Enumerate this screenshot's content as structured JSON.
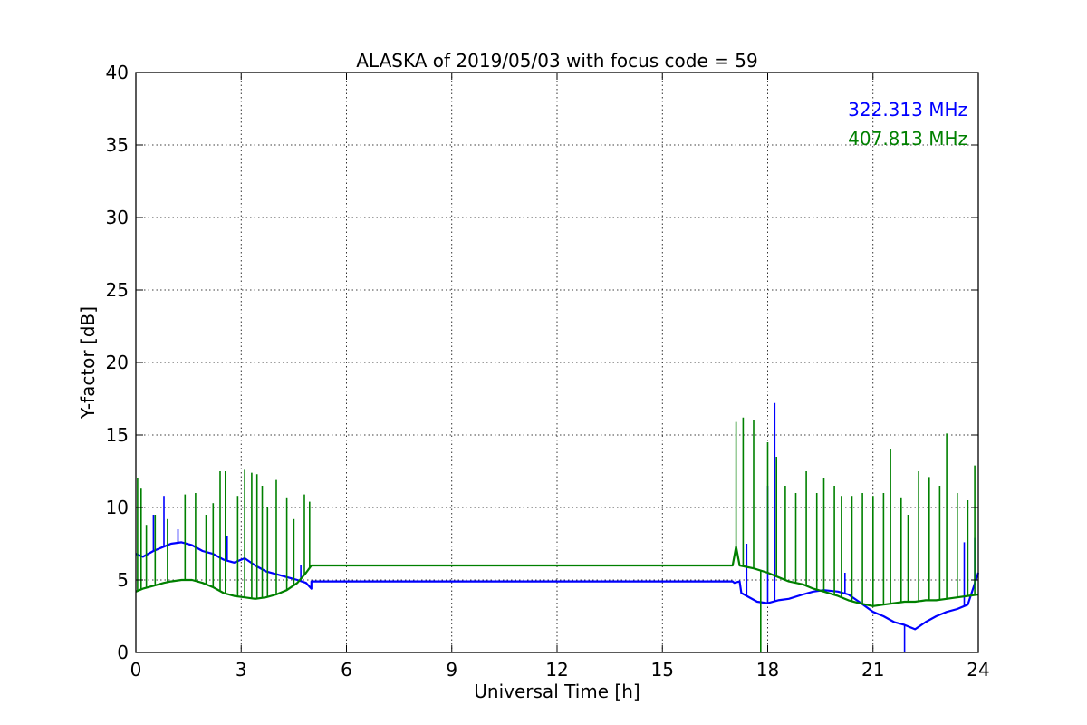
{
  "chart_data": {
    "type": "line",
    "title": "ALASKA of 2019/05/03 with focus code = 59",
    "xlabel": "Universal Time [h]",
    "ylabel": "Y-factor [dB]",
    "xlim": [
      0,
      24
    ],
    "ylim": [
      0,
      40
    ],
    "xticks": [
      0,
      3,
      6,
      9,
      12,
      15,
      18,
      21,
      24
    ],
    "xtick_labels": [
      "0",
      "3",
      "6",
      "9",
      "12",
      "15",
      "18",
      "21",
      "24"
    ],
    "yticks": [
      0,
      5,
      10,
      15,
      20,
      25,
      30,
      35,
      40
    ],
    "ytick_labels": [
      "0",
      "5",
      "10",
      "15",
      "20",
      "25",
      "30",
      "35",
      "40"
    ],
    "grid": true,
    "legend_position": "top-right",
    "series": [
      {
        "name": "322.313 MHz",
        "color": "#0000ff",
        "x": [
          0.0,
          0.2,
          0.5,
          0.8,
          1.0,
          1.3,
          1.6,
          1.9,
          2.2,
          2.5,
          2.8,
          3.1,
          3.4,
          3.7,
          4.0,
          4.3,
          4.6,
          4.85,
          5.0,
          5.0,
          17.0,
          17.05,
          17.2,
          17.25,
          17.7,
          18.0,
          18.3,
          18.6,
          19.0,
          19.3,
          19.6,
          20.0,
          20.3,
          20.6,
          21.0,
          21.3,
          21.6,
          21.9,
          22.2,
          22.5,
          22.8,
          23.1,
          23.4,
          23.7,
          24.0
        ],
        "y": [
          6.8,
          6.6,
          7.0,
          7.3,
          7.5,
          7.6,
          7.4,
          7.0,
          6.8,
          6.4,
          6.2,
          6.5,
          6.0,
          5.6,
          5.4,
          5.2,
          5.0,
          4.8,
          4.4,
          4.9,
          4.9,
          4.8,
          4.9,
          4.1,
          3.5,
          3.4,
          3.6,
          3.7,
          4.0,
          4.2,
          4.3,
          4.2,
          4.0,
          3.5,
          2.8,
          2.5,
          2.1,
          1.9,
          1.6,
          2.1,
          2.5,
          2.8,
          3.0,
          3.3,
          5.5
        ],
        "spikes": [
          [
            0.5,
            9.5
          ],
          [
            0.8,
            10.8
          ],
          [
            1.2,
            8.5
          ],
          [
            2.6,
            8.0
          ],
          [
            4.7,
            6.0
          ],
          [
            17.4,
            7.5
          ],
          [
            18.2,
            17.2
          ],
          [
            18.0,
            11.5
          ],
          [
            20.2,
            5.5
          ],
          [
            21.9,
            0.0
          ],
          [
            23.6,
            7.6
          ],
          [
            23.9,
            7.9
          ]
        ]
      },
      {
        "name": "407.813 MHz",
        "color": "#008000",
        "x": [
          0.0,
          0.2,
          0.5,
          0.8,
          1.0,
          1.3,
          1.6,
          1.9,
          2.2,
          2.5,
          2.8,
          3.1,
          3.4,
          3.7,
          4.0,
          4.3,
          4.6,
          4.85,
          5.0,
          17.0,
          17.1,
          17.2,
          17.6,
          18.0,
          18.3,
          18.6,
          19.0,
          19.3,
          19.6,
          20.0,
          20.3,
          20.6,
          21.0,
          21.3,
          21.6,
          21.9,
          22.2,
          22.5,
          22.8,
          23.1,
          23.4,
          23.7,
          24.0
        ],
        "y": [
          4.2,
          4.4,
          4.6,
          4.8,
          4.9,
          5.0,
          5.0,
          4.8,
          4.5,
          4.1,
          3.9,
          3.8,
          3.7,
          3.8,
          4.0,
          4.3,
          4.8,
          5.5,
          6.0,
          6.0,
          7.3,
          6.0,
          5.8,
          5.5,
          5.2,
          4.9,
          4.7,
          4.4,
          4.2,
          3.9,
          3.6,
          3.4,
          3.2,
          3.3,
          3.4,
          3.5,
          3.5,
          3.6,
          3.6,
          3.7,
          3.8,
          3.9,
          4.0
        ],
        "spikes": [
          [
            0.05,
            12.0
          ],
          [
            0.15,
            11.3
          ],
          [
            0.3,
            8.8
          ],
          [
            0.55,
            9.5
          ],
          [
            0.9,
            9.2
          ],
          [
            1.4,
            10.9
          ],
          [
            1.7,
            11.0
          ],
          [
            2.0,
            9.5
          ],
          [
            2.2,
            10.3
          ],
          [
            2.4,
            12.5
          ],
          [
            2.55,
            12.5
          ],
          [
            2.9,
            10.8
          ],
          [
            3.1,
            12.6
          ],
          [
            3.3,
            12.4
          ],
          [
            3.45,
            12.3
          ],
          [
            3.6,
            11.5
          ],
          [
            3.75,
            10.0
          ],
          [
            4.0,
            11.9
          ],
          [
            4.3,
            10.7
          ],
          [
            4.5,
            9.2
          ],
          [
            4.8,
            10.9
          ],
          [
            4.95,
            10.4
          ],
          [
            17.1,
            15.9
          ],
          [
            17.3,
            16.2
          ],
          [
            17.6,
            16.0
          ],
          [
            17.8,
            -1.0
          ],
          [
            18.0,
            14.5
          ],
          [
            18.25,
            13.5
          ],
          [
            18.5,
            11.5
          ],
          [
            18.8,
            11.0
          ],
          [
            19.1,
            12.5
          ],
          [
            19.4,
            11.0
          ],
          [
            19.6,
            12.0
          ],
          [
            19.9,
            11.5
          ],
          [
            20.1,
            10.8
          ],
          [
            20.4,
            10.8
          ],
          [
            20.7,
            11.0
          ],
          [
            21.0,
            10.8
          ],
          [
            21.3,
            11.0
          ],
          [
            21.5,
            14.0
          ],
          [
            21.8,
            10.7
          ],
          [
            22.0,
            9.5
          ],
          [
            22.3,
            12.5
          ],
          [
            22.6,
            12.1
          ],
          [
            22.9,
            11.5
          ],
          [
            23.1,
            15.1
          ],
          [
            23.4,
            11.0
          ],
          [
            23.7,
            10.5
          ],
          [
            23.9,
            12.9
          ]
        ]
      }
    ]
  }
}
